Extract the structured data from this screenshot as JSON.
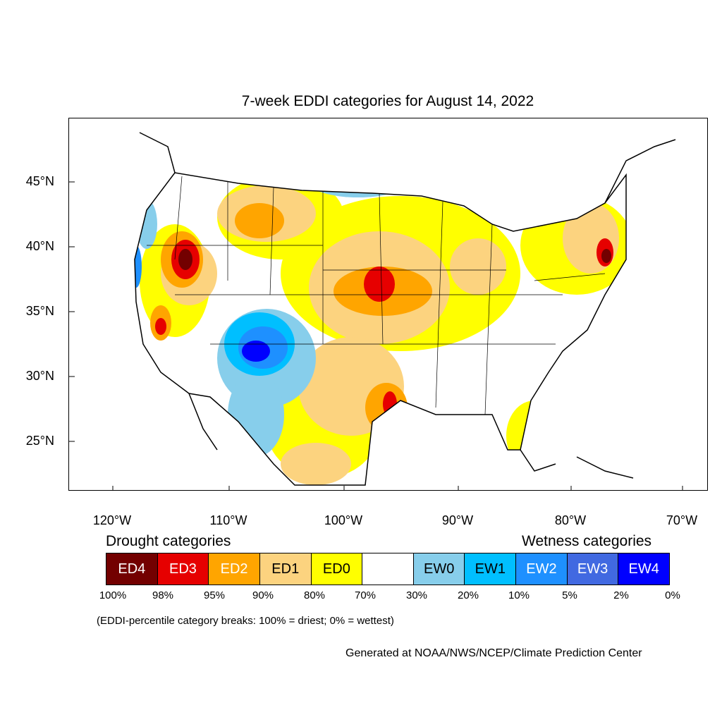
{
  "title": "7-week EDDI categories for August 14, 2022",
  "map": {
    "latitude_labels": [
      "45°N",
      "40°N",
      "35°N",
      "30°N",
      "25°N"
    ],
    "longitude_labels": [
      "120°W",
      "110°W",
      "100°W",
      "90°W",
      "80°W",
      "70°W"
    ]
  },
  "legend": {
    "drought_heading": "Drought categories",
    "wetness_heading": "Wetness categories",
    "categories": [
      {
        "label": "ED4",
        "color": "#730000",
        "text_color": "#ffffff"
      },
      {
        "label": "ED3",
        "color": "#e60000",
        "text_color": "#ffffff"
      },
      {
        "label": "ED2",
        "color": "#ffa500",
        "text_color": "#ffffff"
      },
      {
        "label": "ED1",
        "color": "#fcd37f",
        "text_color": "#000000"
      },
      {
        "label": "ED0",
        "color": "#ffff00",
        "text_color": "#000000"
      },
      {
        "label": "",
        "color": "#ffffff",
        "text_color": "#000000"
      },
      {
        "label": "EW0",
        "color": "#87ceeb",
        "text_color": "#000000"
      },
      {
        "label": "EW1",
        "color": "#00bfff",
        "text_color": "#000000"
      },
      {
        "label": "EW2",
        "color": "#1e90ff",
        "text_color": "#ffffff"
      },
      {
        "label": "EW3",
        "color": "#4169e1",
        "text_color": "#ffffff"
      },
      {
        "label": "EW4",
        "color": "#0000ff",
        "text_color": "#ffffff"
      }
    ],
    "breaks": [
      "100%",
      "98%",
      "95%",
      "90%",
      "80%",
      "70%",
      "30%",
      "20%",
      "10%",
      "5%",
      "2%",
      "0%"
    ],
    "note": "(EDDI-percentile category breaks: 100% = driest; 0% = wettest)"
  },
  "credit": "Generated at NOAA/NWS/NCEP/Climate Prediction Center"
}
